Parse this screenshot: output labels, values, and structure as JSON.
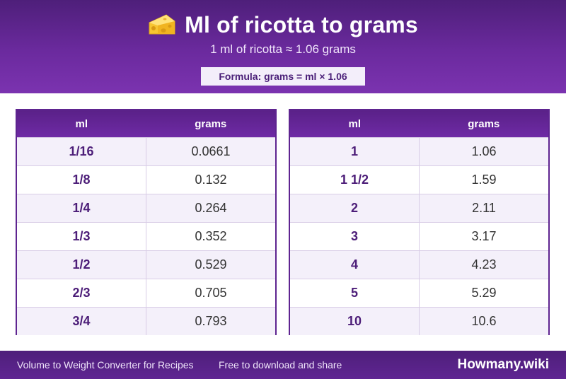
{
  "header": {
    "icon": "cheese-icon",
    "title": "Ml of ricotta to grams",
    "subtitle": "1 ml of ricotta ≈ 1.06 grams",
    "formula": "Formula: grams = ml × 1.06"
  },
  "tables": [
    {
      "col_ml": "ml",
      "col_grams": "grams",
      "rows": [
        {
          "ml": "1/16",
          "grams": "0.0661"
        },
        {
          "ml": "1/8",
          "grams": "0.132"
        },
        {
          "ml": "1/4",
          "grams": "0.264"
        },
        {
          "ml": "1/3",
          "grams": "0.352"
        },
        {
          "ml": "1/2",
          "grams": "0.529"
        },
        {
          "ml": "2/3",
          "grams": "0.705"
        },
        {
          "ml": "3/4",
          "grams": "0.793"
        }
      ]
    },
    {
      "col_ml": "ml",
      "col_grams": "grams",
      "rows": [
        {
          "ml": "1",
          "grams": "1.06"
        },
        {
          "ml": "1 1/2",
          "grams": "1.59"
        },
        {
          "ml": "2",
          "grams": "2.11"
        },
        {
          "ml": "3",
          "grams": "3.17"
        },
        {
          "ml": "4",
          "grams": "4.23"
        },
        {
          "ml": "5",
          "grams": "5.29"
        },
        {
          "ml": "10",
          "grams": "10.6"
        }
      ]
    }
  ],
  "footer": {
    "left": "Volume to Weight Converter for Recipes",
    "middle": "Free to download and share",
    "brand": "Howmany.wiki"
  },
  "colors": {
    "primary": "#5e2490",
    "accent_text": "#4c1d78",
    "formula_bg": "#f3eefa"
  }
}
